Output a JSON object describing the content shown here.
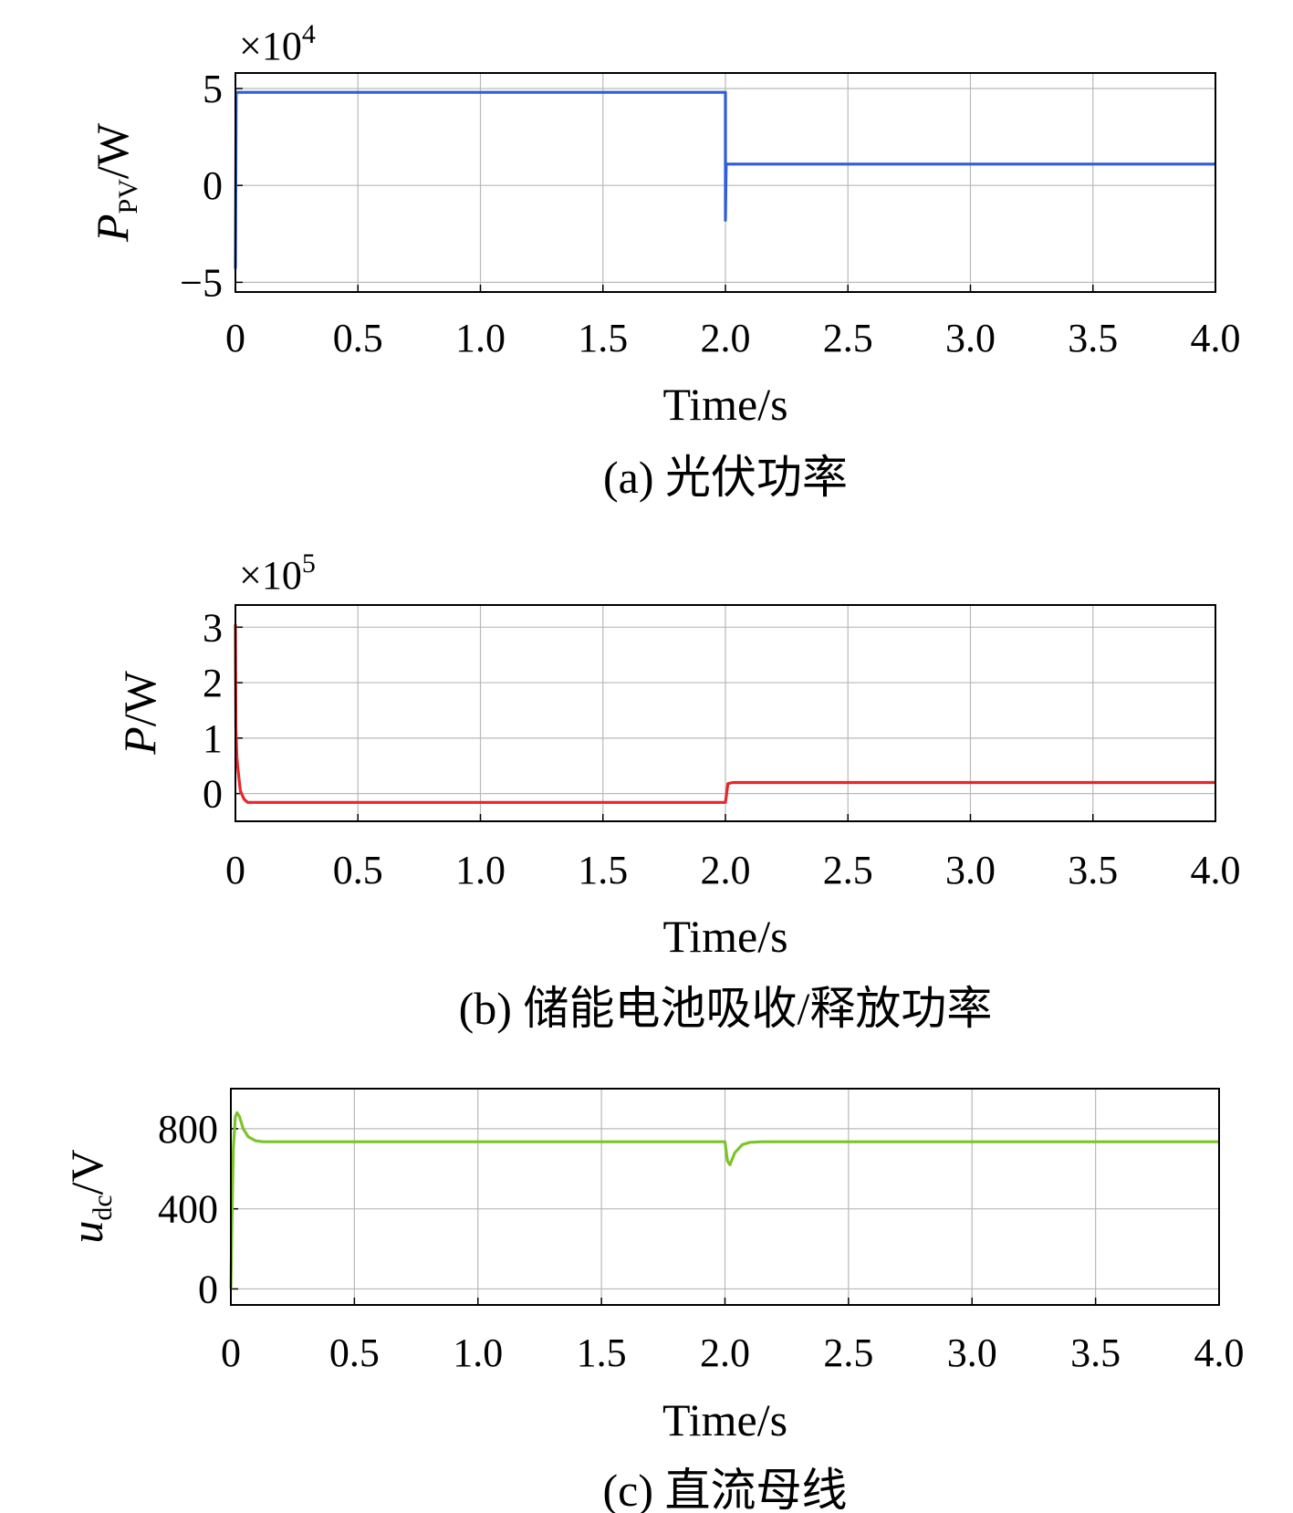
{
  "chart_data": [
    {
      "type": "line",
      "caption": "(a) 光伏功率",
      "xlabel": "Time/s",
      "ylabel": {
        "main": "P",
        "sub": "PV",
        "unit": "/W"
      },
      "multiplier": {
        "base": "×10",
        "exp": "4"
      },
      "xlim": [
        0,
        4.0
      ],
      "ylim": [
        -5.5,
        5.8
      ],
      "xticks": [
        "0",
        "0.5",
        "1.0",
        "1.5",
        "2.0",
        "2.5",
        "3.0",
        "3.5",
        "4.0"
      ],
      "yticks": [
        {
          "value": 5,
          "label": "5"
        },
        {
          "value": 0,
          "label": "0"
        },
        {
          "value": -5,
          "label": "−5"
        }
      ],
      "grid": true,
      "series": [
        {
          "name": "P_PV",
          "color": "#2f5fd6",
          "x": [
            0,
            0.003,
            0.006,
            2.0,
            2.0,
            2.003,
            2.006,
            4.0
          ],
          "y": [
            -4.3,
            4.8,
            4.8,
            4.8,
            -1.8,
            1.1,
            1.1,
            1.1
          ]
        }
      ]
    },
    {
      "type": "line",
      "caption": "(b) 储能电池吸收/释放功率",
      "xlabel": "Time/s",
      "ylabel": {
        "main": "P",
        "sub": "",
        "unit": "/W"
      },
      "multiplier": {
        "base": "×10",
        "exp": "5"
      },
      "xlim": [
        0,
        4.0
      ],
      "ylim": [
        -0.5,
        3.4
      ],
      "xticks": [
        "0",
        "0.5",
        "1.0",
        "1.5",
        "2.0",
        "2.5",
        "3.0",
        "3.5",
        "4.0"
      ],
      "yticks": [
        {
          "value": 3,
          "label": "3"
        },
        {
          "value": 2,
          "label": "2"
        },
        {
          "value": 1,
          "label": "1"
        },
        {
          "value": 0,
          "label": "0"
        }
      ],
      "grid": true,
      "series": [
        {
          "name": "P",
          "color": "#e8262a",
          "x": [
            0,
            0.002,
            0.006,
            0.01,
            0.02,
            0.035,
            0.05,
            0.07,
            0.1,
            2.0,
            2.005,
            2.01,
            2.03,
            4.0
          ],
          "y": [
            3.05,
            1.2,
            0.65,
            0.45,
            0.05,
            -0.1,
            -0.16,
            -0.16,
            -0.16,
            -0.16,
            0.0,
            0.18,
            0.2,
            0.2
          ]
        }
      ]
    },
    {
      "type": "line",
      "caption": "(c) 直流母线",
      "xlabel": "Time/s",
      "ylabel": {
        "main": "u",
        "sub": "dc",
        "unit": "/V"
      },
      "multiplier": null,
      "xlim": [
        0,
        4.0
      ],
      "ylim": [
        -80,
        1000
      ],
      "xticks": [
        "0",
        "0.5",
        "1.0",
        "1.5",
        "2.0",
        "2.5",
        "3.0",
        "3.5",
        "4.0"
      ],
      "yticks": [
        {
          "value": 800,
          "label": "800"
        },
        {
          "value": 400,
          "label": "400"
        },
        {
          "value": 0,
          "label": "0"
        }
      ],
      "grid": true,
      "series": [
        {
          "name": "u_dc",
          "color": "#7cc42a",
          "x": [
            0,
            0.005,
            0.01,
            0.018,
            0.025,
            0.035,
            0.05,
            0.07,
            0.1,
            0.13,
            0.2,
            2.0,
            2.01,
            2.02,
            2.04,
            2.07,
            2.1,
            2.15,
            4.0
          ],
          "y": [
            0,
            400,
            700,
            860,
            880,
            860,
            800,
            760,
            740,
            735,
            735,
            735,
            640,
            620,
            680,
            720,
            732,
            735,
            735
          ]
        }
      ]
    }
  ]
}
